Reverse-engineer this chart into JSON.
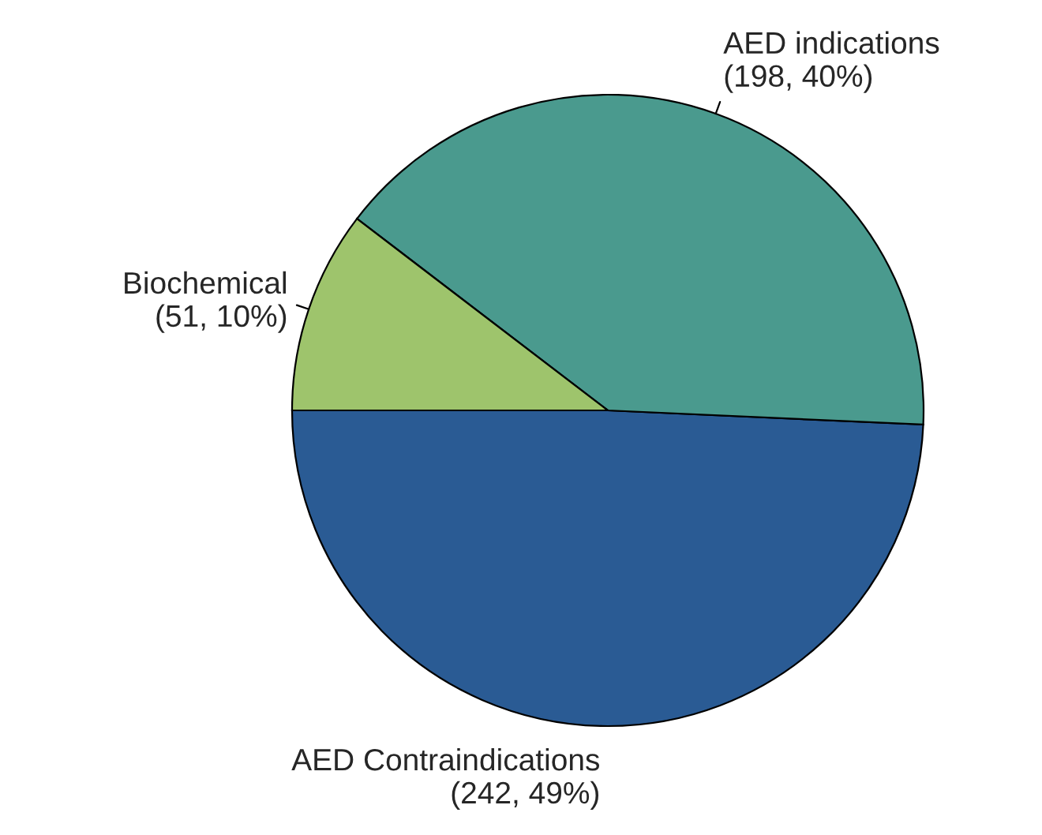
{
  "chart_data": {
    "type": "pie",
    "categories": [
      "AED Contraindications",
      "AED indications",
      "Biochemical"
    ],
    "values": [
      242,
      198,
      51
    ],
    "value_labels": [
      "(242, 49%)",
      "(198, 40%)",
      "(51, 10%)"
    ],
    "colors": [
      "#2a5b94",
      "#4a9a8e",
      "#9ec46c"
    ]
  }
}
